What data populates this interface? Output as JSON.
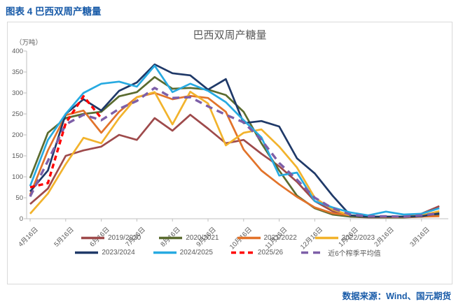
{
  "header": {
    "title": "图表 4  巴西双周产糖量"
  },
  "footer": {
    "source": "数据来源：Wind、国元期货"
  },
  "colors": {
    "caption_blue": "#1A5CA9",
    "axis_text": "#595959",
    "axis_line": "#BFBFBF",
    "box_border": "#D9D9D9"
  },
  "chart_data": {
    "type": "line",
    "title": "巴西双周产糖量",
    "unit_label": "（万吨）",
    "xlabel": "",
    "ylabel": "万吨",
    "ylim": [
      0,
      400
    ],
    "yticks": [
      0,
      50,
      100,
      150,
      200,
      250,
      300,
      350,
      400
    ],
    "grid": false,
    "legend_position": "bottom",
    "x_tick_labels": [
      "4月16日",
      "5月16日",
      "6月16日",
      "7月16日",
      "8月16日",
      "9月16日",
      "10月16日",
      "11月16日",
      "12月16日",
      "1月16日",
      "2月16日",
      "3月16日"
    ],
    "categories": [
      "4月16日",
      "5月1日",
      "5月16日",
      "6月1日",
      "6月16日",
      "7月1日",
      "7月16日",
      "8月1日",
      "8月16日",
      "9月1日",
      "9月16日",
      "10月1日",
      "10月16日",
      "11月1日",
      "11月16日",
      "12月1日",
      "12月16日",
      "1月1日",
      "1月16日",
      "2月1日",
      "2月16日",
      "3月1日",
      "3月16日",
      "4月1日"
    ],
    "series": [
      {
        "name": "2019/2020",
        "color": "#9E4A4B",
        "dash": null,
        "values": [
          35,
          72,
          150,
          163,
          172,
          200,
          188,
          240,
          210,
          248,
          215,
          180,
          188,
          155,
          125,
          88,
          42,
          18,
          5,
          3,
          3,
          4,
          12,
          30
        ]
      },
      {
        "name": "2020/2021",
        "color": "#5A6B2F",
        "dash": null,
        "values": [
          97,
          205,
          240,
          250,
          255,
          292,
          302,
          338,
          310,
          312,
          308,
          295,
          255,
          180,
          115,
          55,
          25,
          10,
          5,
          4,
          3,
          3,
          5,
          10
        ]
      },
      {
        "name": "2021/2022",
        "color": "#E2732A",
        "dash": null,
        "values": [
          57,
          163,
          247,
          258,
          205,
          255,
          290,
          300,
          285,
          293,
          288,
          255,
          165,
          115,
          82,
          52,
          27,
          13,
          8,
          5,
          4,
          4,
          5,
          6
        ]
      },
      {
        "name": "2022/2023",
        "color": "#F2B32C",
        "dash": null,
        "values": [
          12,
          60,
          130,
          193,
          180,
          240,
          290,
          302,
          225,
          303,
          275,
          175,
          205,
          213,
          172,
          122,
          50,
          22,
          8,
          5,
          5,
          5,
          8,
          18
        ]
      },
      {
        "name": "2023/2024",
        "color": "#1F3968",
        "dash": null,
        "values": [
          65,
          115,
          250,
          285,
          258,
          305,
          325,
          368,
          347,
          342,
          308,
          333,
          228,
          233,
          220,
          144,
          108,
          55,
          8,
          5,
          5,
          5,
          6,
          13
        ]
      },
      {
        "name": "2024/2025",
        "color": "#27AAE1",
        "dash": null,
        "values": [
          78,
          188,
          250,
          300,
          322,
          327,
          315,
          365,
          302,
          322,
          305,
          278,
          235,
          194,
          103,
          110,
          42,
          27,
          15,
          8,
          17,
          10,
          12,
          25
        ]
      },
      {
        "name": "2025/26",
        "color": "#FF0000",
        "dash": [
          7,
          5
        ],
        "values": [
          75,
          85,
          228,
          292,
          240,
          null,
          null,
          null,
          null,
          null,
          null,
          null,
          null,
          null,
          null,
          null,
          null,
          null,
          null,
          null,
          null,
          null,
          null,
          null
        ]
      },
      {
        "name": "近6个榨季平均值",
        "color": "#7D5FA8",
        "dash": [
          10,
          7
        ],
        "values": [
          53,
          138,
          225,
          248,
          235,
          262,
          281,
          312,
          288,
          290,
          268,
          248,
          230,
          188,
          133,
          93,
          50,
          25,
          10,
          6,
          6,
          5,
          8,
          13
        ]
      }
    ]
  }
}
